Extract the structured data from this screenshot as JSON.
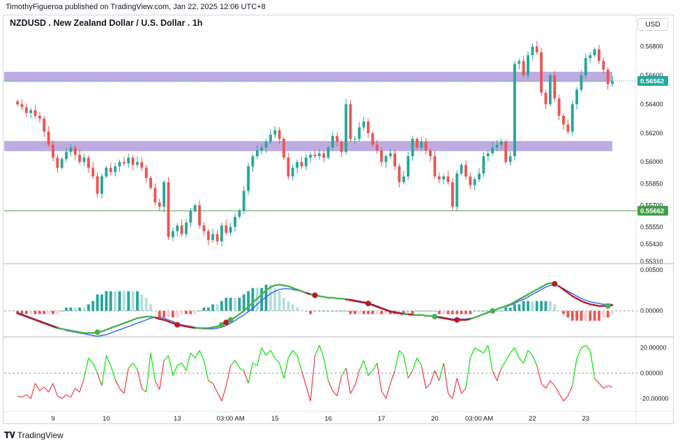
{
  "header": {
    "publisher_line": "TimothyFigueroa published on TradingView.com, Jan 22, 2025 12:06 UTC+8",
    "symbol_title": "NZDUSD . New Zealand Dollar / U.S. Dollar . 1h",
    "currency": "USD"
  },
  "footer": {
    "logo_text": "TradingView"
  },
  "colors": {
    "up": "#26a69a",
    "down": "#ef5350",
    "zone": "#b39ddb",
    "support": "#43a047",
    "current_tag": "#26a69a",
    "macd_fast": "#2962ff",
    "macd_slow_up": "#4caf50",
    "macd_slow_down": "#b71c1c",
    "osc_up": "#00e600",
    "osc_down": "#f23645"
  },
  "chart_data": [
    {
      "type": "candlestick",
      "title": "NZDUSD . New Zealand Dollar / U.S. Dollar . 1h",
      "ylim": [
        0.5531,
        0.569
      ],
      "y_ticks": [
        "0.56800",
        "0.56600",
        "0.56400",
        "0.56200",
        "0.56000",
        "0.55850",
        "0.55700",
        "0.55550",
        "0.55430",
        "0.55310"
      ],
      "x_ticks": [
        "9",
        "10",
        "13",
        "03:00 AM",
        "15",
        "16",
        "17",
        "20",
        "03:00 AM",
        "22",
        "23"
      ],
      "x_tick_values": [
        8,
        20,
        36,
        48,
        58,
        70,
        82,
        94,
        104,
        116,
        128
      ],
      "x_range": [
        -3,
        134
      ],
      "current_price": "0.56562",
      "support_price": "0.55662",
      "current_price_value": 0.56562,
      "support_price_value": 0.55662,
      "resistance_zones": [
        [
          0.56555,
          0.56625
        ],
        [
          0.56075,
          0.56145
        ]
      ],
      "close": [
        0.564,
        0.5638,
        0.5634,
        0.5636,
        0.5632,
        0.563,
        0.5621,
        0.5612,
        0.5603,
        0.5596,
        0.5602,
        0.5607,
        0.561,
        0.5605,
        0.56,
        0.5603,
        0.5596,
        0.559,
        0.5578,
        0.559,
        0.5596,
        0.5593,
        0.5597,
        0.56,
        0.5599,
        0.5603,
        0.5598,
        0.56,
        0.5596,
        0.5589,
        0.5582,
        0.5572,
        0.5569,
        0.5586,
        0.5548,
        0.5552,
        0.5556,
        0.555,
        0.5558,
        0.5566,
        0.557,
        0.5556,
        0.5552,
        0.5546,
        0.555,
        0.5545,
        0.5556,
        0.5551,
        0.5555,
        0.5562,
        0.5566,
        0.558,
        0.5597,
        0.5604,
        0.5608,
        0.561,
        0.5614,
        0.5619,
        0.5622,
        0.5616,
        0.5603,
        0.559,
        0.5596,
        0.56,
        0.5597,
        0.5603,
        0.5605,
        0.5604,
        0.5606,
        0.5603,
        0.561,
        0.5618,
        0.5614,
        0.5607,
        0.564,
        0.5616,
        0.5616,
        0.5624,
        0.5628,
        0.562,
        0.5612,
        0.5608,
        0.56,
        0.5604,
        0.5606,
        0.5597,
        0.5586,
        0.559,
        0.5604,
        0.5616,
        0.561,
        0.5614,
        0.5608,
        0.5604,
        0.559,
        0.5588,
        0.559,
        0.5586,
        0.5569,
        0.5592,
        0.5598,
        0.559,
        0.5584,
        0.5588,
        0.5592,
        0.5604,
        0.5606,
        0.561,
        0.5612,
        0.5614,
        0.56,
        0.5604,
        0.5668,
        0.567,
        0.566,
        0.5674,
        0.568,
        0.5676,
        0.5648,
        0.564,
        0.566,
        0.5644,
        0.5632,
        0.5626,
        0.5621,
        0.564,
        0.565,
        0.566,
        0.5672,
        0.5674,
        0.5678,
        0.567,
        0.5664,
        0.5654,
        0.5656
      ],
      "volatility": 0.00055
    },
    {
      "type": "macd",
      "ylim": [
        -0.003,
        0.0055
      ],
      "y_ticks": [
        "0.00500",
        "0.00000"
      ],
      "fast_line": [
        -0.0003,
        -0.0005,
        -0.0007,
        -0.0009,
        -0.0011,
        -0.0013,
        -0.0015,
        -0.0017,
        -0.0019,
        -0.0021,
        -0.0022,
        -0.0023,
        -0.0024,
        -0.0025,
        -0.0026,
        -0.0027,
        -0.0027,
        -0.0027,
        -0.0026,
        -0.0025,
        -0.0023,
        -0.0021,
        -0.0019,
        -0.0017,
        -0.0015,
        -0.0013,
        -0.0011,
        -0.0009,
        -0.0008,
        -0.0007,
        -0.0007,
        -0.0008,
        -0.001,
        -0.0011,
        -0.0013,
        -0.0015,
        -0.0017,
        -0.0018,
        -0.0019,
        -0.002,
        -0.0021,
        -0.0021,
        -0.0021,
        -0.0021,
        -0.002,
        -0.0019,
        -0.0017,
        -0.0014,
        -0.0011,
        -0.0008,
        -0.0004,
        0.0,
        0.0005,
        0.001,
        0.0015,
        0.002,
        0.0025,
        0.0029,
        0.0031,
        0.0032,
        0.0031,
        0.003,
        0.0028,
        0.0026,
        0.0024,
        0.0022,
        0.002,
        0.0019,
        0.0018,
        0.0017,
        0.0016,
        0.0016,
        0.0015,
        0.0015,
        0.0014,
        0.0013,
        0.0012,
        0.0011,
        0.001,
        0.0009,
        0.0007,
        0.0005,
        0.0003,
        0.0001,
        -0.0001,
        -0.0002,
        -0.0003,
        -0.0004,
        -0.0004,
        -0.0005,
        -0.0005,
        -0.0005,
        -0.0006,
        -0.0006,
        -0.0007,
        -0.0008,
        -0.0009,
        -0.001,
        -0.0011,
        -0.0011,
        -0.0011,
        -0.0011,
        -0.001,
        -0.0008,
        -0.0006,
        -0.0004,
        -0.0002,
        0.0,
        0.0002,
        0.0004,
        0.0006,
        0.0008,
        0.0011,
        0.0014,
        0.0017,
        0.002,
        0.0023,
        0.0026,
        0.0029,
        0.0032,
        0.0034,
        0.0033,
        0.003,
        0.0026,
        0.0022,
        0.0018,
        0.0015,
        0.0012,
        0.001,
        0.0008,
        0.0007,
        0.0006,
        0.0006,
        0.0006,
        0.0007
      ],
      "signal_line": [
        -0.0002,
        -0.0004,
        -0.0006,
        -0.0008,
        -0.001,
        -0.0012,
        -0.0014,
        -0.0016,
        -0.0018,
        -0.002,
        -0.0022,
        -0.0024,
        -0.0025,
        -0.0026,
        -0.0027,
        -0.0028,
        -0.0029,
        -0.003,
        -0.0031,
        -0.003,
        -0.0029,
        -0.0027,
        -0.0025,
        -0.0023,
        -0.0021,
        -0.0019,
        -0.0017,
        -0.0015,
        -0.0013,
        -0.0011,
        -0.0009,
        -0.0008,
        -0.0008,
        -0.0009,
        -0.0011,
        -0.0013,
        -0.0015,
        -0.0017,
        -0.0018,
        -0.0019,
        -0.002,
        -0.0021,
        -0.0022,
        -0.0022,
        -0.0022,
        -0.0021,
        -0.002,
        -0.0018,
        -0.0015,
        -0.0012,
        -0.0008,
        -0.0005,
        -0.0001,
        0.0003,
        0.0008,
        0.0013,
        0.0017,
        0.0021,
        0.0024,
        0.0026,
        0.0027,
        0.0027,
        0.0026,
        0.0025,
        0.0024,
        0.0022,
        0.0021,
        0.0019,
        0.0018,
        0.0017,
        0.0016,
        0.0016,
        0.0015,
        0.0015,
        0.0014,
        0.0014,
        0.0013,
        0.0012,
        0.0011,
        0.001,
        0.0008,
        0.0006,
        0.0004,
        0.0002,
        0.0,
        -0.0001,
        -0.0002,
        -0.0003,
        -0.0004,
        -0.0004,
        -0.0005,
        -0.0005,
        -0.0006,
        -0.0006,
        -0.0007,
        -0.0007,
        -0.0008,
        -0.0009,
        -0.001,
        -0.001,
        -0.001,
        -0.001,
        -0.0009,
        -0.0008,
        -0.0006,
        -0.0004,
        -0.0002,
        0.0,
        0.0002,
        0.0004,
        0.0005,
        0.0007,
        0.0009,
        0.0012,
        0.0014,
        0.0017,
        0.002,
        0.0023,
        0.0026,
        0.0029,
        0.0031,
        0.0031,
        0.003,
        0.0027,
        0.0024,
        0.0021,
        0.0018,
        0.0015,
        0.0013,
        0.0011,
        0.001,
        0.0009,
        0.0008,
        0.0008,
        0.0008
      ],
      "cross_points": [
        {
          "i": 18,
          "dir": "up"
        },
        {
          "i": 36,
          "dir": "down"
        },
        {
          "i": 46,
          "dir": "up"
        },
        {
          "i": 47,
          "dir": "down"
        },
        {
          "i": 48,
          "dir": "up"
        },
        {
          "i": 67,
          "dir": "down"
        },
        {
          "i": 79,
          "dir": "down"
        },
        {
          "i": 94,
          "dir": "up"
        },
        {
          "i": 99,
          "dir": "down"
        },
        {
          "i": 107,
          "dir": "up"
        },
        {
          "i": 121,
          "dir": "down"
        },
        {
          "i": 133,
          "dir": "up"
        }
      ]
    },
    {
      "type": "line",
      "ylim": [
        -27,
        27
      ],
      "y_ticks": [
        "20.00000",
        "0.00000",
        "-20.00000"
      ],
      "y_tick_values": [
        20,
        0,
        -20
      ],
      "values": [
        -18,
        -19,
        -17,
        -20,
        -8,
        -14,
        -11,
        -15,
        -8,
        -18,
        -20,
        -17,
        -19,
        -12,
        -15,
        -4,
        12,
        8,
        0,
        -10,
        14,
        6,
        -5,
        -12,
        -16,
        4,
        8,
        3,
        -12,
        -15,
        16,
        -6,
        -13,
        10,
        14,
        -2,
        6,
        8,
        2,
        16,
        12,
        18,
        10,
        -6,
        -8,
        -15,
        -22,
        -10,
        6,
        10,
        4,
        2,
        -8,
        8,
        6,
        20,
        14,
        18,
        12,
        8,
        -4,
        12,
        18,
        14,
        2,
        -10,
        -22,
        14,
        22,
        12,
        -6,
        -14,
        -18,
        -2,
        4,
        -16,
        -10,
        2,
        10,
        -2,
        2,
        8,
        -14,
        -20,
        -8,
        2,
        18,
        14,
        -4,
        2,
        12,
        6,
        -12,
        -8,
        2,
        -6,
        8,
        -16,
        -20,
        -4,
        -16,
        -12,
        12,
        20,
        18,
        16,
        22,
        2,
        -6,
        4,
        10,
        16,
        20,
        12,
        8,
        18,
        14,
        6,
        -8,
        -12,
        -6,
        -10,
        -16,
        -22,
        -18,
        -10,
        12,
        20,
        22,
        18,
        -4,
        -8,
        -12,
        -10,
        -11
      ]
    }
  ]
}
